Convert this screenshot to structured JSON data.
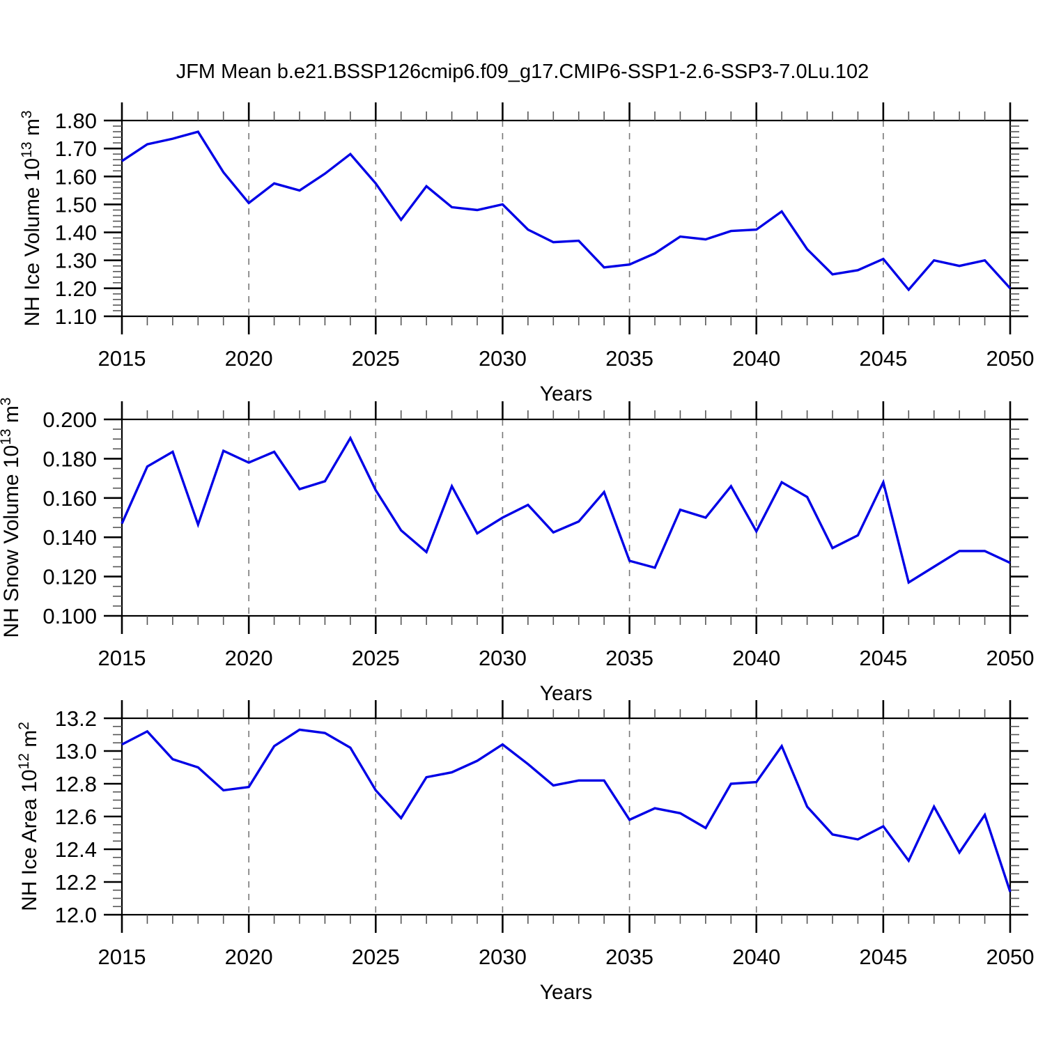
{
  "title": "JFM Mean b.e21.BSSP126cmip6.f09_g17.CMIP6-SSP1-2.6-SSP3-7.0Lu.102",
  "figure": {
    "xlabel": "Years"
  },
  "axis": {
    "xlim": [
      2015,
      2050
    ],
    "xmajor_step": 5,
    "xminor_step": 1,
    "grid_years": [
      2020,
      2025,
      2030,
      2035,
      2040,
      2045
    ],
    "x_tick_labels": [
      "2015",
      "2020",
      "2025",
      "2030",
      "2035",
      "2040",
      "2045",
      "2050"
    ]
  },
  "colors": {
    "line": "#0000e6",
    "grid": "#777777",
    "frame": "#000000",
    "minor_tick": "#555555"
  },
  "years": [
    2015,
    2016,
    2017,
    2018,
    2019,
    2020,
    2021,
    2022,
    2023,
    2024,
    2025,
    2026,
    2027,
    2028,
    2029,
    2030,
    2031,
    2032,
    2033,
    2034,
    2035,
    2036,
    2037,
    2038,
    2039,
    2040,
    2041,
    2042,
    2043,
    2044,
    2045,
    2046,
    2047,
    2048,
    2049,
    2050
  ],
  "chart_data": [
    {
      "type": "line",
      "name": "nh-ice-volume",
      "title": "",
      "ylabel": "NH Ice Volume 10^13 m^3",
      "ylabel_parts": [
        {
          "t": "NH Ice Volume 10"
        },
        {
          "t": "13",
          "sup": true
        },
        {
          "t": " m"
        },
        {
          "t": "3",
          "sup": true
        }
      ],
      "xlabel": "Years",
      "ylim": [
        1.1,
        1.8
      ],
      "ytick_step": 0.1,
      "yminor_step": 0.02,
      "ydecimals": 2,
      "grid": "vertical-dashed",
      "legend": "none",
      "values": [
        1.655,
        1.715,
        1.735,
        1.76,
        1.615,
        1.505,
        1.575,
        1.55,
        1.61,
        1.68,
        1.575,
        1.445,
        1.565,
        1.49,
        1.48,
        1.5,
        1.41,
        1.365,
        1.37,
        1.275,
        1.285,
        1.325,
        1.385,
        1.375,
        1.405,
        1.41,
        1.475,
        1.34,
        1.25,
        1.265,
        1.305,
        1.195,
        1.3,
        1.28,
        1.3,
        1.2
      ]
    },
    {
      "type": "line",
      "name": "nh-snow-volume",
      "title": "",
      "ylabel": "NH Snow Volume 10^13 m^3",
      "ylabel_parts": [
        {
          "t": "NH Snow Volume 10"
        },
        {
          "t": "13",
          "sup": true
        },
        {
          "t": " m"
        },
        {
          "t": "3",
          "sup": true
        }
      ],
      "xlabel": "Years",
      "ylim": [
        0.1,
        0.2
      ],
      "ytick_step": 0.02,
      "yminor_step": 0.005,
      "ydecimals": 3,
      "grid": "vertical-dashed",
      "legend": "none",
      "values": [
        0.147,
        0.176,
        0.1835,
        0.1465,
        0.184,
        0.178,
        0.1835,
        0.1645,
        0.1685,
        0.1905,
        0.164,
        0.1435,
        0.1325,
        0.166,
        0.142,
        0.15,
        0.1565,
        0.1425,
        0.148,
        0.163,
        0.128,
        0.1245,
        0.154,
        0.15,
        0.166,
        0.143,
        0.168,
        0.1605,
        0.1345,
        0.141,
        0.168,
        0.117,
        0.125,
        0.133,
        0.133,
        0.127
      ]
    },
    {
      "type": "line",
      "name": "nh-ice-area",
      "title": "",
      "ylabel": "NH Ice Area 10^12 m^2",
      "ylabel_parts": [
        {
          "t": "NH Ice Area 10"
        },
        {
          "t": "12",
          "sup": true
        },
        {
          "t": " m"
        },
        {
          "t": "2",
          "sup": true
        }
      ],
      "xlabel": "Years",
      "ylim": [
        12.0,
        13.2
      ],
      "ytick_step": 0.2,
      "yminor_step": 0.05,
      "ydecimals": 1,
      "grid": "vertical-dashed",
      "legend": "none",
      "values": [
        13.04,
        13.12,
        12.95,
        12.9,
        12.76,
        12.78,
        13.03,
        13.13,
        13.11,
        13.02,
        12.76,
        12.59,
        12.84,
        12.87,
        12.94,
        13.04,
        12.92,
        12.79,
        12.82,
        12.82,
        12.58,
        12.65,
        12.62,
        12.53,
        12.8,
        12.81,
        13.03,
        12.66,
        12.49,
        12.46,
        12.54,
        12.33,
        12.66,
        12.38,
        12.61,
        12.14
      ]
    }
  ]
}
